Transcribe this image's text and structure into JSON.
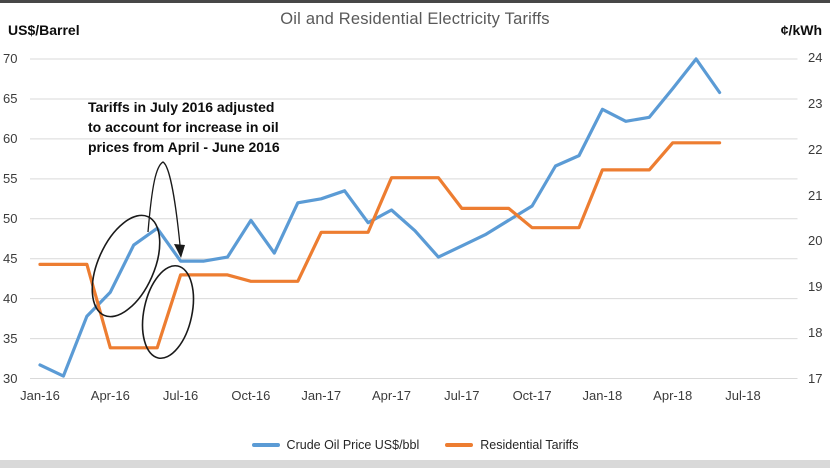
{
  "chart_data": {
    "type": "line",
    "title": "Oil and Residential Electricity Tariffs",
    "x_tick_labels": [
      "Jan-16",
      "Apr-16",
      "Jul-16",
      "Oct-16",
      "Jan-17",
      "Apr-17",
      "Jul-17",
      "Oct-17",
      "Jan-18",
      "Apr-18",
      "Jul-18"
    ],
    "x_frequency": "monthly",
    "x_range": [
      "Jan-16",
      "Jun-18"
    ],
    "grid": "horizontal-only",
    "left_axis": {
      "label": "US$/Barrel",
      "min": 30,
      "max": 70,
      "ticks": [
        70,
        65,
        60,
        55,
        50,
        45,
        40,
        35,
        30
      ]
    },
    "right_axis": {
      "label": "¢/kWh",
      "min": 17,
      "max": 24,
      "ticks": [
        24,
        23,
        22,
        21,
        20,
        19,
        18,
        17
      ]
    },
    "series": [
      {
        "id": "crude-oil",
        "name": "Crude Oil Price US$/bbl",
        "axis": "left",
        "color": "#5B9BD5",
        "values": [
          31.7,
          30.3,
          37.8,
          40.8,
          46.7,
          48.8,
          44.7,
          44.7,
          45.2,
          49.8,
          45.7,
          52.0,
          52.5,
          53.5,
          49.5,
          51.1,
          48.5,
          45.2,
          46.6,
          48.0,
          49.8,
          51.6,
          56.6,
          57.9,
          63.7,
          62.2,
          62.7,
          66.3,
          70.0,
          65.8
        ]
      },
      {
        "id": "residential-tariffs",
        "name": "Residential Tariffs",
        "axis": "right",
        "color": "#ED7D31",
        "values": [
          19.5,
          19.5,
          19.5,
          17.68,
          17.68,
          17.68,
          19.27,
          19.27,
          19.27,
          19.13,
          19.13,
          19.13,
          20.2,
          20.2,
          20.2,
          21.39,
          21.39,
          21.39,
          20.72,
          20.72,
          20.72,
          20.3,
          20.3,
          20.3,
          21.56,
          21.56,
          21.56,
          22.15,
          22.15,
          22.15
        ]
      }
    ]
  },
  "annotation": {
    "lines": [
      "Tariffs in July 2016 adjusted",
      "to account for increase in oil",
      "prices from April - June 2016"
    ]
  },
  "legend": [
    {
      "label": "Crude Oil Price US$/bbl",
      "color": "#5B9BD5"
    },
    {
      "label": "Residential Tariffs",
      "color": "#ED7D31"
    }
  ],
  "colors": {
    "oil_line": "#5B9BD5",
    "tariff_line": "#ED7D31",
    "gridline": "#d9d9d9",
    "title_text": "#595959",
    "tick_text": "#3b3b3b",
    "annotation_ink": "#1a1a1a",
    "top_border": "#474747",
    "bottom_bar": "#d9d9d9"
  }
}
